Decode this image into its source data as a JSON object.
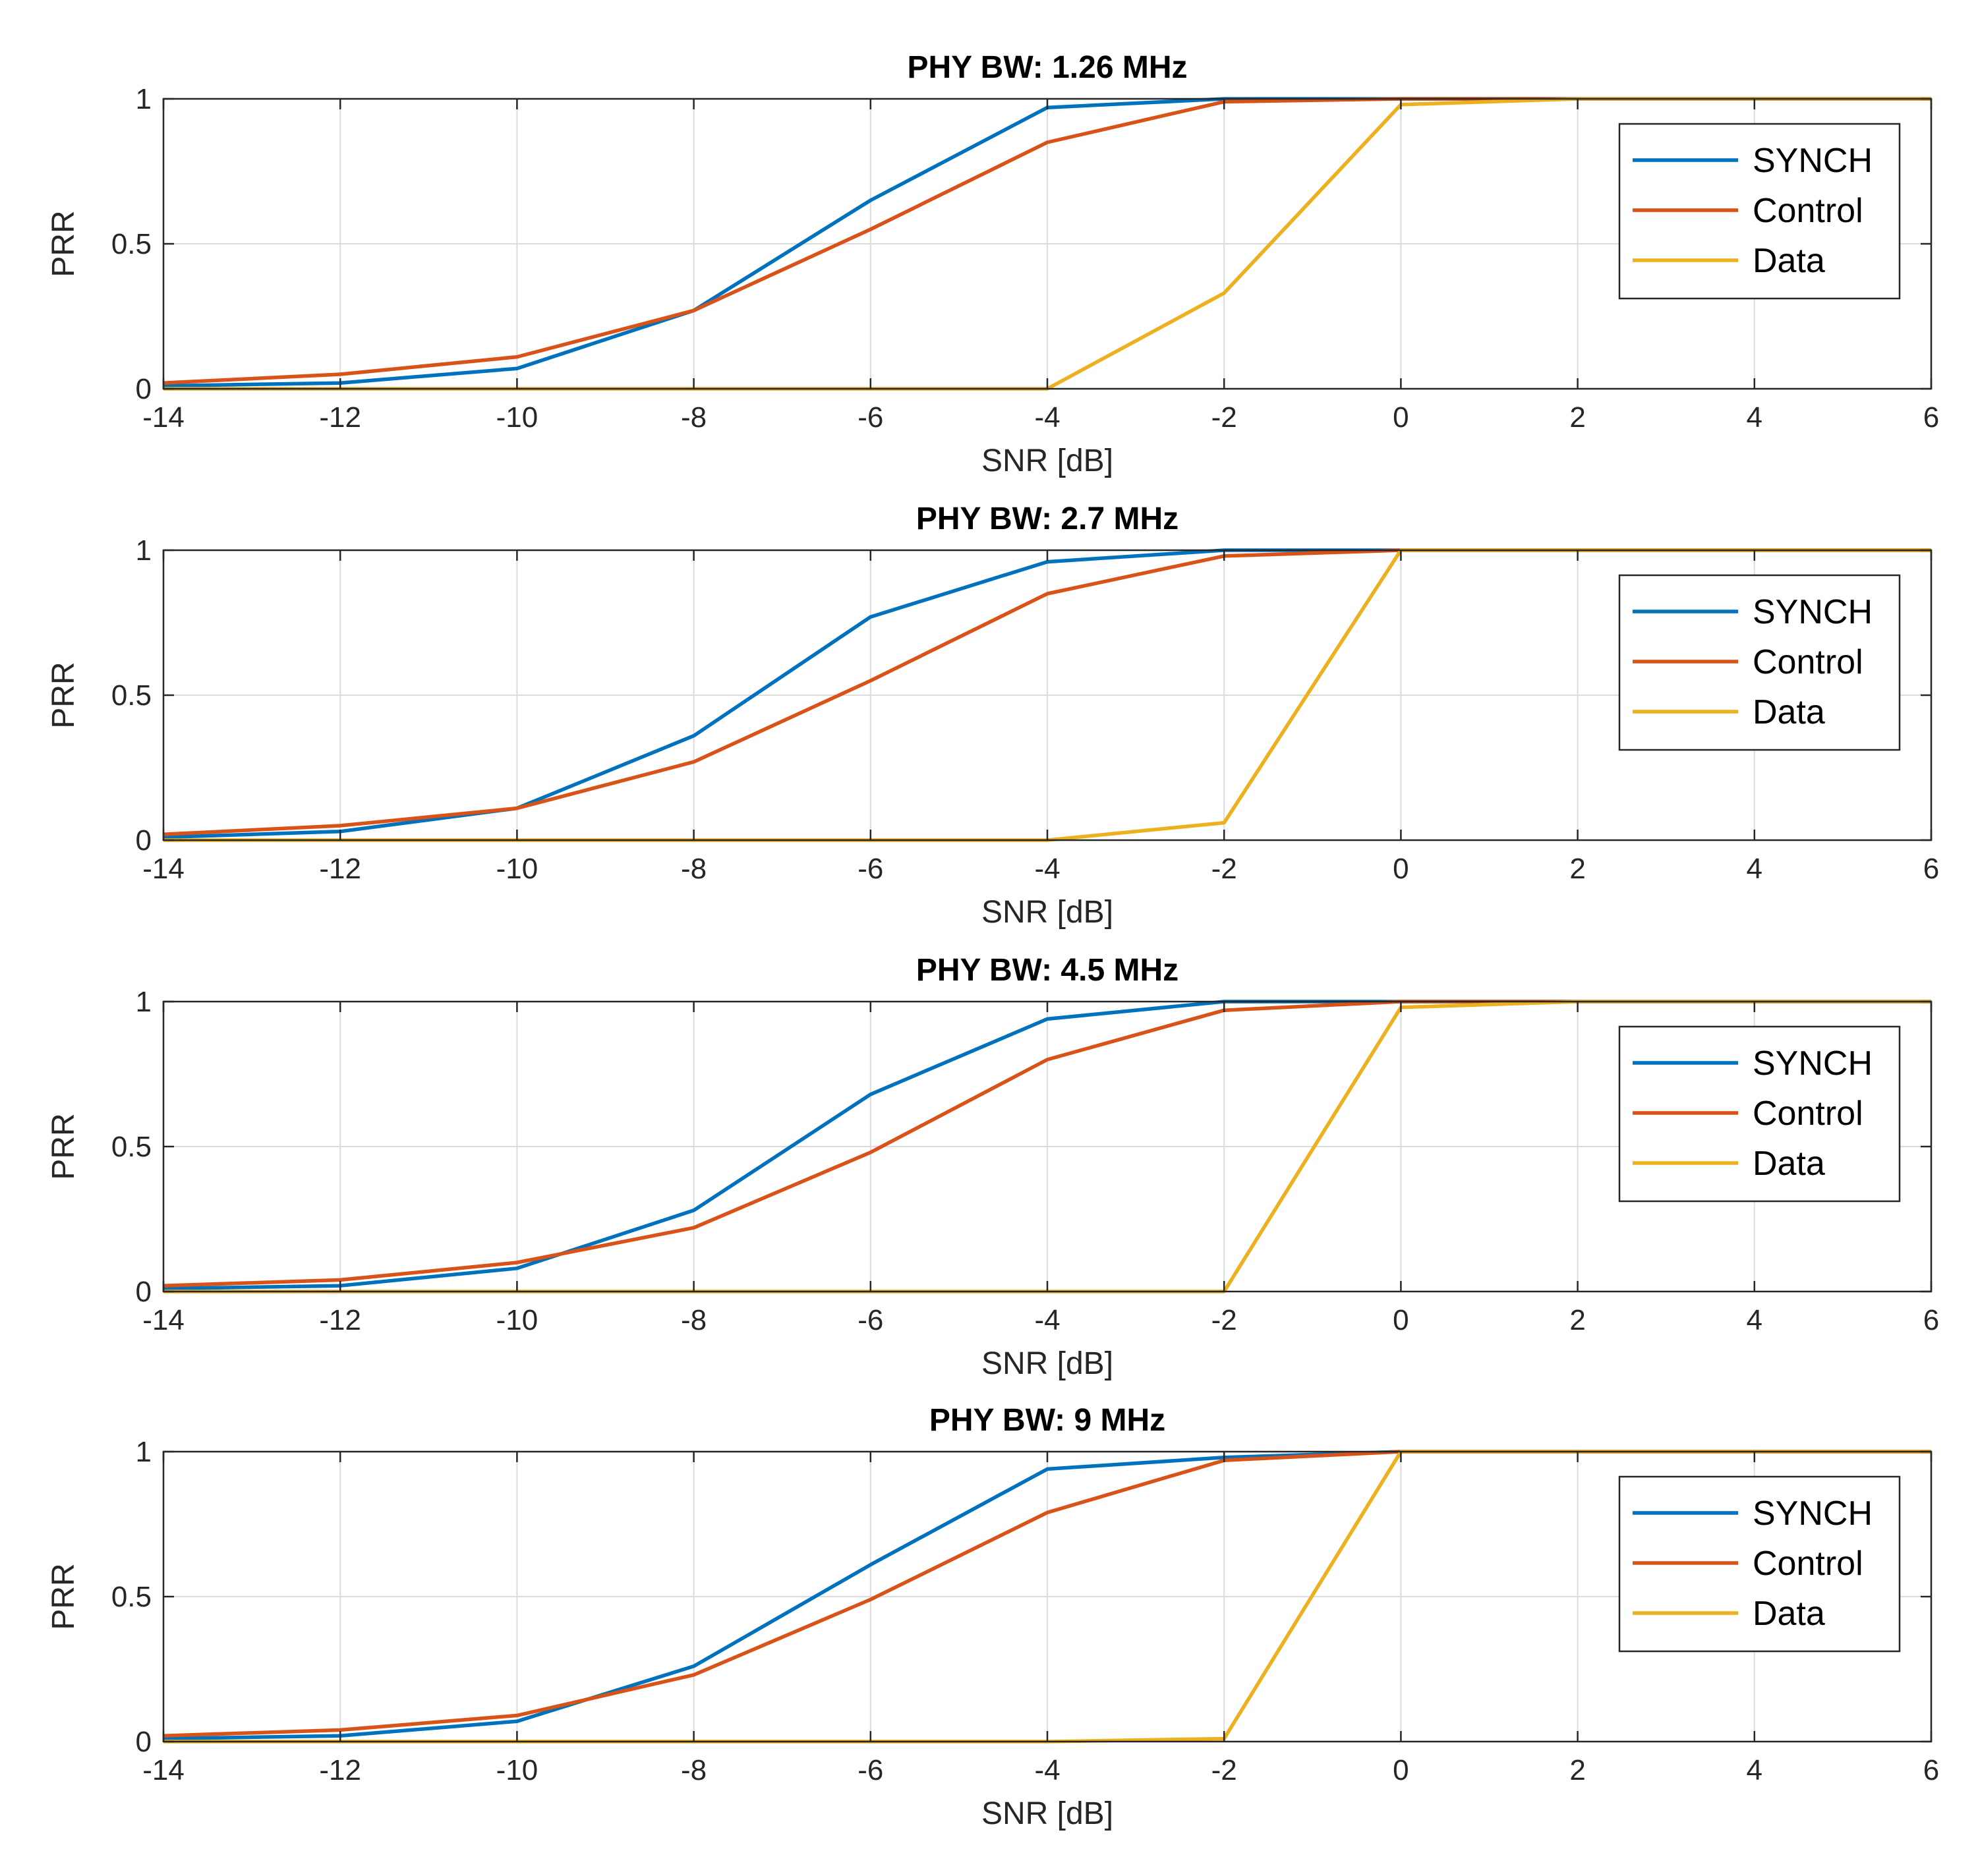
{
  "figure": {
    "legend_position": "top-right",
    "grid": true
  },
  "colors": {
    "SYNCH": "#0072BD",
    "Control": "#D95319",
    "Data": "#EDB120"
  },
  "chart_data": [
    {
      "type": "line",
      "title": "PHY BW: 1.26 MHz",
      "xlabel": "SNR [dB]",
      "ylabel": "PRR",
      "xlim": [
        -14,
        6
      ],
      "ylim": [
        0,
        1
      ],
      "xticks": [
        -14,
        -12,
        -10,
        -8,
        -6,
        -4,
        -2,
        0,
        2,
        4,
        6
      ],
      "yticks": [
        0,
        0.5,
        1
      ],
      "x": [
        -14,
        -12,
        -10,
        -8,
        -6,
        -4,
        -2,
        0,
        2,
        4,
        6
      ],
      "series": [
        {
          "name": "SYNCH",
          "values": [
            0.01,
            0.02,
            0.07,
            0.27,
            0.65,
            0.97,
            1.0,
            1.0,
            1.0,
            1.0,
            1.0
          ]
        },
        {
          "name": "Control",
          "values": [
            0.02,
            0.05,
            0.11,
            0.27,
            0.55,
            0.85,
            0.99,
            1.0,
            1.0,
            1.0,
            1.0
          ]
        },
        {
          "name": "Data",
          "values": [
            0,
            0,
            0,
            0,
            0,
            0,
            0.33,
            0.98,
            1.0,
            1.0,
            1.0
          ]
        }
      ]
    },
    {
      "type": "line",
      "title": "PHY BW: 2.7 MHz",
      "xlabel": "SNR [dB]",
      "ylabel": "PRR",
      "xlim": [
        -14,
        6
      ],
      "ylim": [
        0,
        1
      ],
      "xticks": [
        -14,
        -12,
        -10,
        -8,
        -6,
        -4,
        -2,
        0,
        2,
        4,
        6
      ],
      "yticks": [
        0,
        0.5,
        1
      ],
      "x": [
        -14,
        -12,
        -10,
        -8,
        -6,
        -4,
        -2,
        0,
        2,
        4,
        6
      ],
      "series": [
        {
          "name": "SYNCH",
          "values": [
            0.01,
            0.03,
            0.11,
            0.36,
            0.77,
            0.96,
            1.0,
            1.0,
            1.0,
            1.0,
            1.0
          ]
        },
        {
          "name": "Control",
          "values": [
            0.02,
            0.05,
            0.11,
            0.27,
            0.55,
            0.85,
            0.98,
            1.0,
            1.0,
            1.0,
            1.0
          ]
        },
        {
          "name": "Data",
          "values": [
            0,
            0,
            0,
            0,
            0,
            0,
            0.06,
            1.0,
            1.0,
            1.0,
            1.0
          ]
        }
      ]
    },
    {
      "type": "line",
      "title": "PHY BW: 4.5 MHz",
      "xlabel": "SNR [dB]",
      "ylabel": "PRR",
      "xlim": [
        -14,
        6
      ],
      "ylim": [
        0,
        1
      ],
      "xticks": [
        -14,
        -12,
        -10,
        -8,
        -6,
        -4,
        -2,
        0,
        2,
        4,
        6
      ],
      "yticks": [
        0,
        0.5,
        1
      ],
      "x": [
        -14,
        -12,
        -10,
        -8,
        -6,
        -4,
        -2,
        0,
        2,
        4,
        6
      ],
      "series": [
        {
          "name": "SYNCH",
          "values": [
            0.01,
            0.02,
            0.08,
            0.28,
            0.68,
            0.94,
            1.0,
            1.0,
            1.0,
            1.0,
            1.0
          ]
        },
        {
          "name": "Control",
          "values": [
            0.02,
            0.04,
            0.1,
            0.22,
            0.48,
            0.8,
            0.97,
            1.0,
            1.0,
            1.0,
            1.0
          ]
        },
        {
          "name": "Data",
          "values": [
            0,
            0,
            0,
            0,
            0,
            0,
            0,
            0.98,
            1.0,
            1.0,
            1.0
          ]
        }
      ]
    },
    {
      "type": "line",
      "title": "PHY BW: 9 MHz",
      "xlabel": "SNR [dB]",
      "ylabel": "PRR",
      "xlim": [
        -14,
        6
      ],
      "ylim": [
        0,
        1
      ],
      "xticks": [
        -14,
        -12,
        -10,
        -8,
        -6,
        -4,
        -2,
        0,
        2,
        4,
        6
      ],
      "yticks": [
        0,
        0.5,
        1
      ],
      "x": [
        -14,
        -12,
        -10,
        -8,
        -6,
        -4,
        -2,
        0,
        2,
        4,
        6
      ],
      "series": [
        {
          "name": "SYNCH",
          "values": [
            0.01,
            0.02,
            0.07,
            0.26,
            0.61,
            0.94,
            0.98,
            1.0,
            1.0,
            1.0,
            1.0
          ]
        },
        {
          "name": "Control",
          "values": [
            0.02,
            0.04,
            0.09,
            0.23,
            0.49,
            0.79,
            0.97,
            1.0,
            1.0,
            1.0,
            1.0
          ]
        },
        {
          "name": "Data",
          "values": [
            0,
            0,
            0,
            0,
            0,
            0,
            0.01,
            1.0,
            1.0,
            1.0,
            1.0
          ]
        }
      ]
    }
  ]
}
